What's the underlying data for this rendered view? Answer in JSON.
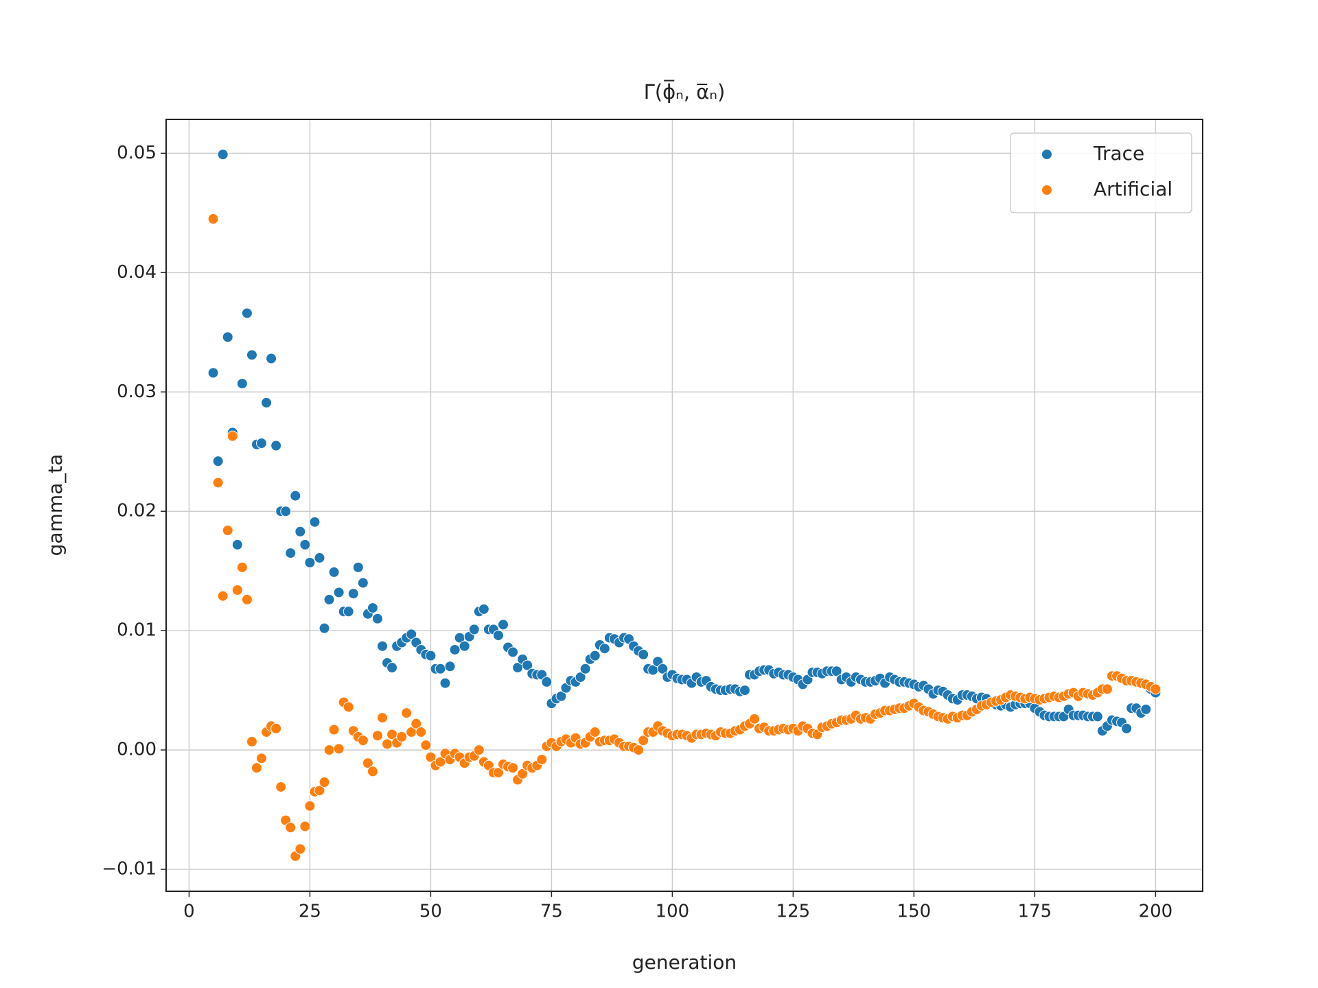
{
  "chart_data": {
    "type": "scatter",
    "title": "Γ(ϕ̅ₙ, α̅ₙ)",
    "xlabel": "generation",
    "ylabel": "gamma_ta",
    "x": [
      5,
      6,
      7,
      8,
      9,
      10,
      11,
      12,
      13,
      14,
      15,
      16,
      17,
      18,
      19,
      20,
      21,
      22,
      23,
      24,
      25,
      26,
      27,
      28,
      29,
      30,
      31,
      32,
      33,
      34,
      35,
      36,
      37,
      38,
      39,
      40,
      41,
      42,
      43,
      44,
      45,
      46,
      47,
      48,
      49,
      50,
      51,
      52,
      53,
      54,
      55,
      56,
      57,
      58,
      59,
      60,
      61,
      62,
      63,
      64,
      65,
      66,
      67,
      68,
      69,
      70,
      71,
      72,
      73,
      74,
      75,
      76,
      77,
      78,
      79,
      80,
      81,
      82,
      83,
      84,
      85,
      86,
      87,
      88,
      89,
      90,
      91,
      92,
      93,
      94,
      95,
      96,
      97,
      98,
      99,
      100,
      101,
      102,
      103,
      104,
      105,
      106,
      107,
      108,
      109,
      110,
      111,
      112,
      113,
      114,
      115,
      116,
      117,
      118,
      119,
      120,
      121,
      122,
      123,
      124,
      125,
      126,
      127,
      128,
      129,
      130,
      131,
      132,
      133,
      134,
      135,
      136,
      137,
      138,
      139,
      140,
      141,
      142,
      143,
      144,
      145,
      146,
      147,
      148,
      149,
      150,
      151,
      152,
      153,
      154,
      155,
      156,
      157,
      158,
      159,
      160,
      161,
      162,
      163,
      164,
      165,
      166,
      167,
      168,
      169,
      170,
      171,
      172,
      173,
      174,
      175,
      176,
      177,
      178,
      179,
      180,
      181,
      182,
      183,
      184,
      185,
      186,
      187,
      188,
      189,
      190,
      191,
      192,
      193,
      194,
      195,
      196,
      197,
      198,
      199,
      200
    ],
    "series": [
      {
        "name": "Trace",
        "color": "#1f77b4",
        "values": [
          0.0316,
          0.0242,
          0.0499,
          0.0346,
          0.0266,
          0.0172,
          0.0307,
          0.0366,
          0.0331,
          0.0256,
          0.0257,
          0.0291,
          0.0328,
          0.0255,
          0.02,
          0.02,
          0.0165,
          0.0213,
          0.0183,
          0.0172,
          0.0157,
          0.0191,
          0.0161,
          0.0102,
          0.0126,
          0.0149,
          0.0132,
          0.0116,
          0.0116,
          0.0131,
          0.0153,
          0.014,
          0.0114,
          0.0119,
          0.011,
          0.0087,
          0.0073,
          0.0069,
          0.0087,
          0.009,
          0.0094,
          0.0097,
          0.009,
          0.0084,
          0.008,
          0.0079,
          0.0068,
          0.0068,
          0.0056,
          0.007,
          0.0084,
          0.0094,
          0.0087,
          0.0095,
          0.0101,
          0.0116,
          0.0118,
          0.0101,
          0.0101,
          0.0096,
          0.0105,
          0.0086,
          0.0082,
          0.0069,
          0.0076,
          0.0071,
          0.0064,
          0.0063,
          0.0063,
          0.0057,
          0.0039,
          0.0043,
          0.0045,
          0.0052,
          0.0058,
          0.0057,
          0.0061,
          0.0068,
          0.0076,
          0.0079,
          0.0088,
          0.0085,
          0.0094,
          0.0093,
          0.009,
          0.0094,
          0.0093,
          0.0087,
          0.0083,
          0.008,
          0.0068,
          0.0067,
          0.0074,
          0.0068,
          0.0061,
          0.0063,
          0.006,
          0.0059,
          0.0059,
          0.0056,
          0.0061,
          0.0057,
          0.0058,
          0.0053,
          0.0051,
          0.005,
          0.005,
          0.0051,
          0.0051,
          0.0049,
          0.005,
          0.0063,
          0.0063,
          0.0066,
          0.0067,
          0.0067,
          0.0064,
          0.0065,
          0.0063,
          0.0063,
          0.0061,
          0.0059,
          0.0055,
          0.0059,
          0.0065,
          0.0065,
          0.0064,
          0.0066,
          0.0066,
          0.0066,
          0.0059,
          0.0061,
          0.0057,
          0.0061,
          0.0059,
          0.0057,
          0.0057,
          0.0058,
          0.006,
          0.0056,
          0.0061,
          0.0059,
          0.0057,
          0.0057,
          0.0056,
          0.0055,
          0.0053,
          0.0054,
          0.0051,
          0.0047,
          0.005,
          0.0049,
          0.0046,
          0.0043,
          0.0042,
          0.0046,
          0.0046,
          0.0045,
          0.0043,
          0.0044,
          0.0043,
          0.004,
          0.0038,
          0.0037,
          0.0038,
          0.0036,
          0.0038,
          0.0039,
          0.0039,
          0.0039,
          0.0035,
          0.0032,
          0.0029,
          0.0028,
          0.0028,
          0.0028,
          0.0028,
          0.0034,
          0.0029,
          0.0029,
          0.0029,
          0.0028,
          0.0028,
          0.0028,
          0.0016,
          0.002,
          0.0025,
          0.0024,
          0.0023,
          0.0018,
          0.0035,
          0.0035,
          0.0031,
          0.0034,
          0.0051,
          0.0048
        ]
      },
      {
        "name": "Artificial",
        "color": "#ff7f0e",
        "values": [
          0.0445,
          0.0224,
          0.0129,
          0.0184,
          0.0263,
          0.0134,
          0.0153,
          0.0126,
          0.0007,
          -0.0015,
          -0.0007,
          0.0015,
          0.002,
          0.0018,
          -0.0031,
          -0.0059,
          -0.0065,
          -0.0089,
          -0.0083,
          -0.0064,
          -0.0047,
          -0.0035,
          -0.0034,
          -0.0027,
          0.0,
          0.0017,
          0.0001,
          0.004,
          0.0036,
          0.0016,
          0.0011,
          0.0008,
          -0.0011,
          -0.0018,
          0.0012,
          0.0027,
          0.0005,
          0.0013,
          0.0006,
          0.0011,
          0.0031,
          0.0015,
          0.0022,
          0.0015,
          0.0004,
          -0.0006,
          -0.0013,
          -0.001,
          -0.0003,
          -0.0008,
          -0.0003,
          -0.0006,
          -0.0011,
          -0.0006,
          -0.0005,
          0.0,
          -0.001,
          -0.0013,
          -0.0019,
          -0.0019,
          -0.0012,
          -0.0014,
          -0.0015,
          -0.0025,
          -0.002,
          -0.0013,
          -0.0015,
          -0.0013,
          -0.0008,
          0.0003,
          0.0006,
          0.0003,
          0.0007,
          0.0009,
          0.0006,
          0.001,
          0.0005,
          0.0006,
          0.0011,
          0.0015,
          0.0007,
          0.0008,
          0.0008,
          0.0009,
          0.0006,
          0.0003,
          0.0003,
          0.0002,
          0.0,
          0.0008,
          0.0015,
          0.0015,
          0.002,
          0.0016,
          0.0014,
          0.0012,
          0.0013,
          0.0013,
          0.0012,
          0.001,
          0.0013,
          0.0013,
          0.0014,
          0.0013,
          0.0012,
          0.0015,
          0.0014,
          0.0014,
          0.0016,
          0.0017,
          0.002,
          0.0022,
          0.0026,
          0.0018,
          0.0019,
          0.0016,
          0.0016,
          0.0017,
          0.0018,
          0.0017,
          0.0018,
          0.0016,
          0.002,
          0.0018,
          0.0014,
          0.0013,
          0.0019,
          0.002,
          0.0022,
          0.0023,
          0.0025,
          0.0025,
          0.0026,
          0.0029,
          0.0026,
          0.0027,
          0.0026,
          0.003,
          0.0031,
          0.0033,
          0.0033,
          0.0034,
          0.0035,
          0.0035,
          0.0037,
          0.0039,
          0.0036,
          0.0033,
          0.0032,
          0.003,
          0.0028,
          0.0027,
          0.0026,
          0.0028,
          0.0027,
          0.0029,
          0.0029,
          0.0032,
          0.0034,
          0.0037,
          0.0038,
          0.004,
          0.0041,
          0.0042,
          0.0044,
          0.0046,
          0.0045,
          0.0044,
          0.0043,
          0.0044,
          0.0043,
          0.0042,
          0.0043,
          0.0044,
          0.0045,
          0.0044,
          0.0045,
          0.0047,
          0.0048,
          0.0045,
          0.0048,
          0.0047,
          0.0046,
          0.0048,
          0.0051,
          0.0051,
          0.0062,
          0.0062,
          0.006,
          0.0058,
          0.0058,
          0.0057,
          0.0056,
          0.0055,
          0.0053,
          0.0051
        ]
      }
    ],
    "xlim": [
      -4.75,
      209.75
    ],
    "xticks": [
      0,
      25,
      50,
      75,
      100,
      125,
      150,
      175,
      200
    ],
    "ylim": [
      -0.01184,
      0.05284
    ],
    "yticks": [
      {
        "value": -0.01,
        "label": "−0.01"
      },
      {
        "value": 0,
        "label": "0.00"
      },
      0.01,
      0.02,
      0.03,
      0.04,
      0.05
    ],
    "grid": true,
    "legend": "upper right"
  }
}
